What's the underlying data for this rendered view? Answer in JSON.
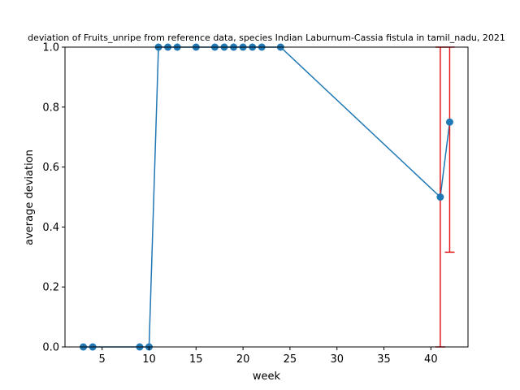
{
  "chart_data": {
    "type": "line",
    "title": "deviation of Fruits_unripe from reference data, species Indian Laburnum-Cassia fistula in tamil_nadu, 2021",
    "xlabel": "week",
    "ylabel": "average deviation",
    "xlim": [
      1.05,
      43.95
    ],
    "ylim": [
      0,
      1
    ],
    "xticks": [
      5,
      10,
      15,
      20,
      25,
      30,
      35,
      40
    ],
    "yticks": [
      0.0,
      0.2,
      0.4,
      0.6,
      0.8,
      1.0
    ],
    "xtick_labels": [
      "5",
      "10",
      "15",
      "20",
      "25",
      "30",
      "35",
      "40"
    ],
    "ytick_labels": [
      "0.0",
      "0.2",
      "0.4",
      "0.6",
      "0.8",
      "1.0"
    ],
    "grid": false,
    "series": [
      {
        "color": "#1f77b4",
        "x": [
          3,
          4,
          9,
          10,
          11,
          12,
          13,
          15,
          17,
          18,
          19,
          20,
          21,
          22,
          24,
          41,
          42
        ],
        "y": [
          0,
          0,
          0,
          0,
          1,
          1,
          1,
          1,
          1,
          1,
          1,
          1,
          1,
          1,
          1,
          0.5,
          0.75
        ]
      }
    ],
    "error_bars": {
      "color": "#e41a1c",
      "items": [
        {
          "x": 41,
          "low": 0.0,
          "high": 1.0
        },
        {
          "x": 42,
          "low": 0.316,
          "high": 1.0
        }
      ]
    }
  }
}
